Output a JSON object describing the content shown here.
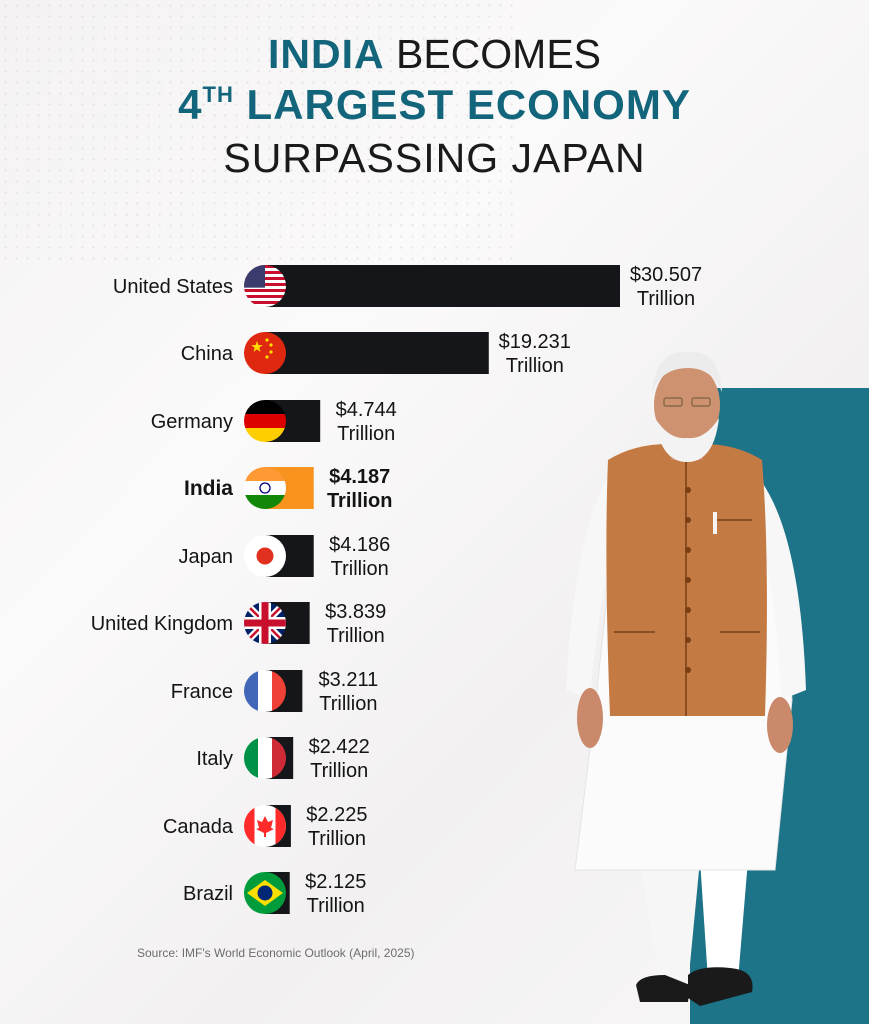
{
  "title": {
    "line1_highlight": "INDIA",
    "line1_rest": " BECOMES",
    "line2_num": "4",
    "line2_sup": "TH",
    "line2_rest": " LARGEST ECONOMY",
    "line3": "SURPASSING JAPAN"
  },
  "chart_data": {
    "type": "bar",
    "orientation": "horizontal",
    "unit_label": "Trillion",
    "categories": [
      "United States",
      "China",
      "Germany",
      "India",
      "Japan",
      "United Kingdom",
      "France",
      "Italy",
      "Canada",
      "Brazil"
    ],
    "values": [
      30.507,
      19.231,
      4.744,
      4.187,
      4.186,
      3.839,
      3.211,
      2.422,
      2.225,
      2.125
    ],
    "value_labels": [
      "$30.507",
      "$19.231",
      "$4.744",
      "$4.187",
      "$4.186",
      "$3.839",
      "$3.211",
      "$2.422",
      "$2.225",
      "$2.125"
    ],
    "highlight": "India",
    "colors": {
      "bar": "#15161a",
      "highlight_bar": "#f7931e",
      "label": "#141414"
    },
    "flags": [
      "us-flag-icon",
      "china-flag-icon",
      "germany-flag-icon",
      "india-flag-icon",
      "japan-flag-icon",
      "uk-flag-icon",
      "france-flag-icon",
      "italy-flag-icon",
      "canada-flag-icon",
      "brazil-flag-icon"
    ]
  },
  "source": "Source: IMF's World Economic Outlook (April, 2025)",
  "colors": {
    "teal": "#1d7388",
    "title_teal": "#13657c"
  }
}
